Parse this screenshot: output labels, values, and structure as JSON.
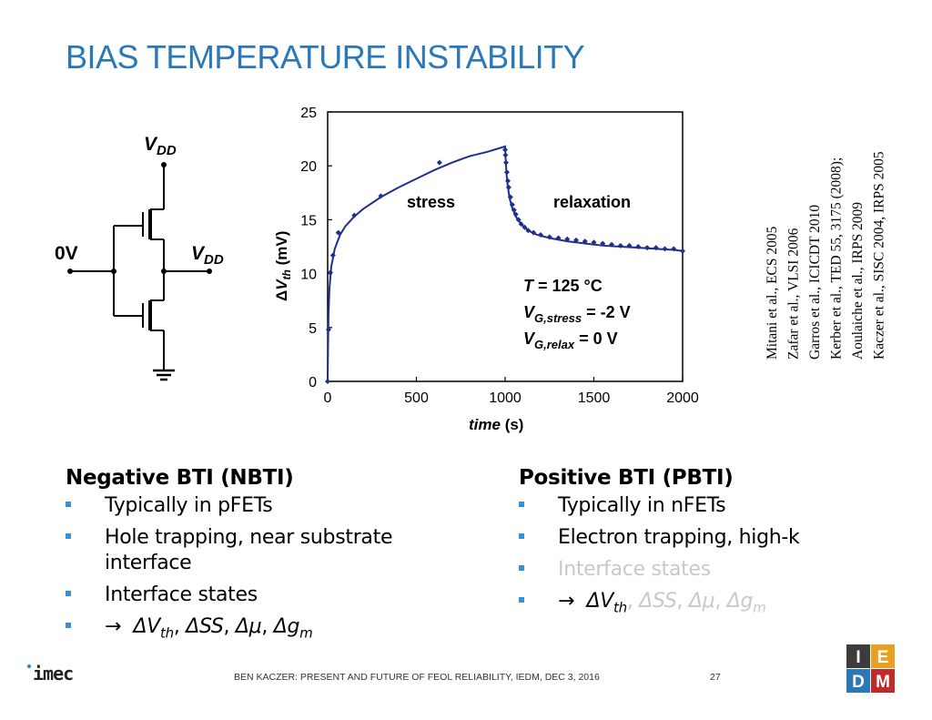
{
  "slide": {
    "title": "BIAS TEMPERATURE INSTABILITY",
    "page_number": "27",
    "footer": "BEN KACZER: PRESENT AND FUTURE OF FEOL RELIABILITY, IEDM, DEC 3, 2016",
    "logo_left": "imec",
    "logo_right": [
      "I",
      "E",
      "D",
      "M"
    ]
  },
  "circuit": {
    "vdd_top": {
      "main": "V",
      "sub": "DD"
    },
    "vdd_out": {
      "main": "V",
      "sub": "DD"
    },
    "input_label": "0V"
  },
  "chart_data": {
    "type": "scatter",
    "xlabel": "time (s)",
    "ylabel": "ΔVth (mV)",
    "xlim": [
      0,
      2000
    ],
    "ylim": [
      0,
      25
    ],
    "xticks": [
      "0",
      "500",
      "1000",
      "1500",
      "2000"
    ],
    "yticks": [
      "0",
      "5",
      "10",
      "15",
      "20",
      "25"
    ],
    "grid": false,
    "series": [
      {
        "marker": "diamond",
        "color": "#1f2f8c",
        "x": [
          0,
          5,
          15,
          30,
          60,
          150,
          300,
          630
        ],
        "y": [
          0,
          4.8,
          10.1,
          11.7,
          13.8,
          15.4,
          17.2,
          20.3
        ]
      },
      {
        "marker": "diamond",
        "color": "#1f2f8c",
        "x": [
          1000,
          1002,
          1005,
          1010,
          1015,
          1020,
          1030,
          1040,
          1050,
          1060,
          1075,
          1090,
          1110,
          1130,
          1160,
          1200,
          1250,
          1300,
          1350,
          1400,
          1450,
          1500,
          1550,
          1600,
          1650,
          1700,
          1750,
          1800,
          1850,
          1900,
          1950,
          2000
        ],
        "y": [
          21.5,
          21,
          20.3,
          19.4,
          18.6,
          18.0,
          17.1,
          16.4,
          15.9,
          15.5,
          15.0,
          14.6,
          14.3,
          14.0,
          13.8,
          13.6,
          13.4,
          13.3,
          13.2,
          13.1,
          13.0,
          12.9,
          12.8,
          12.7,
          12.6,
          12.6,
          12.5,
          12.4,
          12.4,
          12.3,
          12.3,
          12.1
        ]
      }
    ],
    "fit_line": {
      "color": "#1f2f8c",
      "x": [
        0,
        2,
        5,
        10,
        20,
        40,
        70,
        100,
        150,
        200,
        300,
        400,
        500,
        600,
        700,
        800,
        900,
        1000,
        1003,
        1008,
        1015,
        1025,
        1040,
        1060,
        1090,
        1130,
        1180,
        1250,
        1350,
        1450,
        1550,
        1650,
        1750,
        1850,
        1950,
        2000
      ],
      "y": [
        0,
        3,
        6.2,
        8.6,
        10.6,
        12.3,
        13.6,
        14.4,
        15.3,
        16.0,
        17.1,
        18.0,
        18.8,
        19.6,
        20.3,
        20.9,
        21.3,
        21.8,
        20.6,
        19.2,
        18.1,
        17.0,
        16.1,
        15.3,
        14.6,
        14.0,
        13.6,
        13.3,
        13.0,
        12.8,
        12.6,
        12.5,
        12.4,
        12.3,
        12.2,
        12.1
      ]
    },
    "annotations": {
      "stress": "stress",
      "relaxation": "relaxation",
      "conditions": [
        {
          "main": "T",
          "sub": "",
          "rest": " = 125 °C"
        },
        {
          "main": "V",
          "sub": "G,stress",
          "rest": " = -2 V"
        },
        {
          "main": "V",
          "sub": "G,relax",
          "rest": " = 0 V"
        }
      ]
    }
  },
  "references": [
    "Mitani et al., ECS 2005",
    "Zafar et al., VLSI 2006",
    "Garros et al., ICICDT 2010",
    "Kerber et al., TED 55, 3175 (2008);",
    "Aoulaiche et al., IRPS 2009",
    "Kaczer et al., SISC 2004, IRPS 2005"
  ],
  "nbti": {
    "heading": "Negative BTI (NBTI)",
    "items": [
      "Typically in pFETs",
      "Hole trapping, near substrate interface",
      "Interface states"
    ],
    "deltas": {
      "arrow": "→",
      "vth": "ΔV",
      "vth_sub": "th",
      "ss": "ΔSS",
      "mu": "Δμ",
      "gm": "Δg",
      "gm_sub": "m",
      "sep": ", "
    }
  },
  "pbti": {
    "heading": "Positive BTI (PBTI)",
    "items": [
      "Typically in nFETs",
      "Electron trapping, high-k",
      "Interface states"
    ],
    "deltas": {
      "arrow": "→",
      "vth": "ΔV",
      "vth_sub": "th",
      "ss": "ΔSS",
      "mu": "Δμ",
      "gm": "Δg",
      "gm_sub": "m",
      "sep": ", "
    }
  }
}
